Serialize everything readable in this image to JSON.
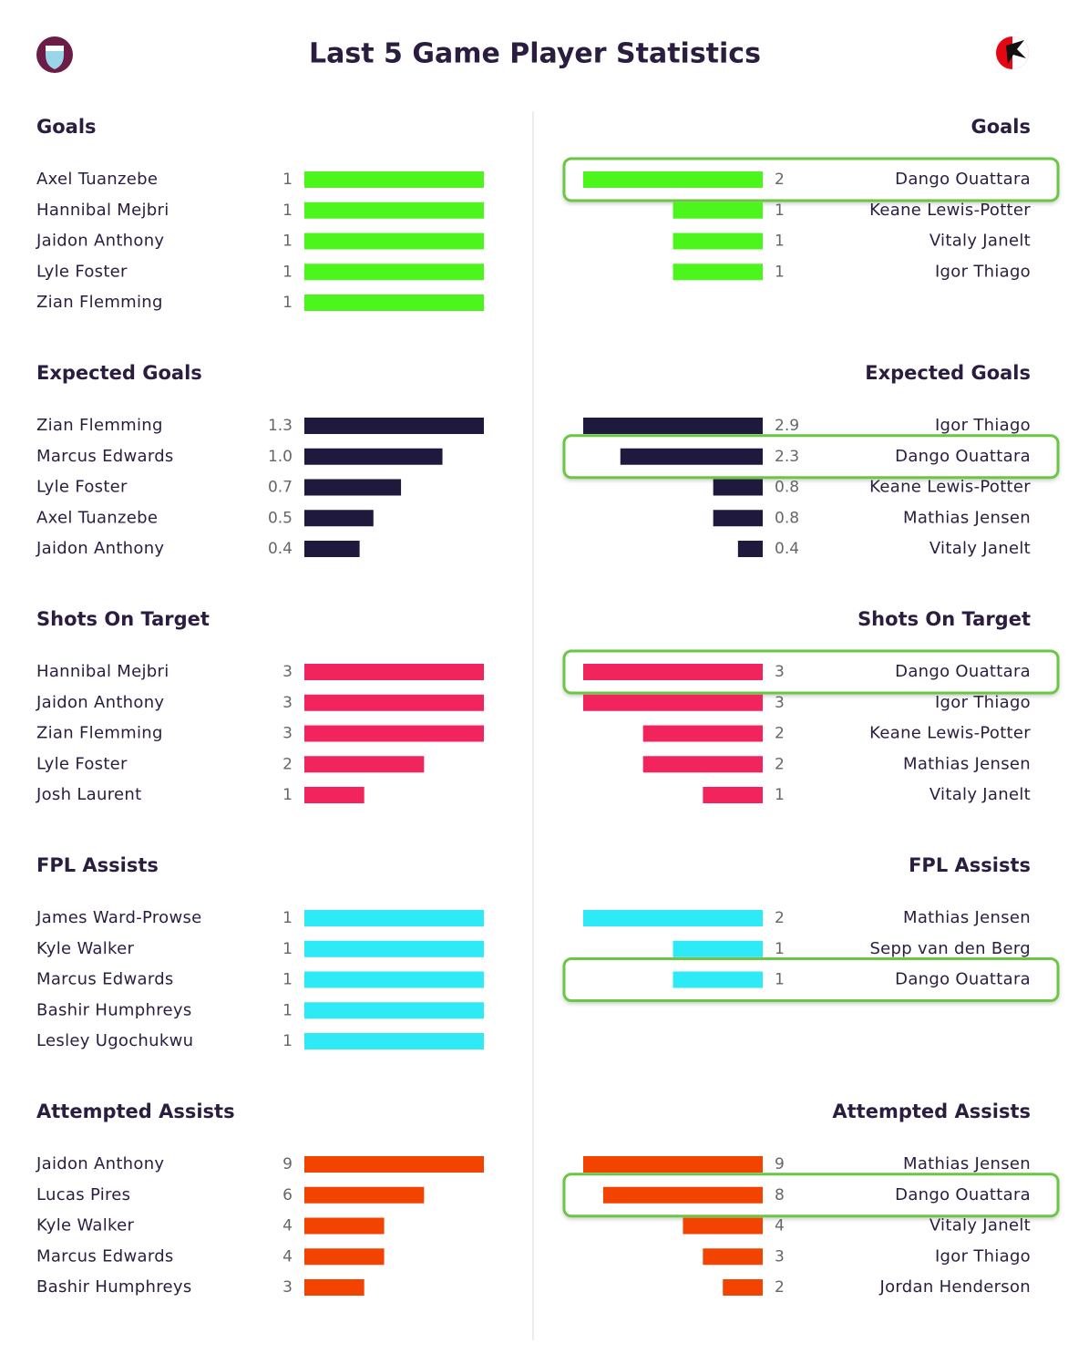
{
  "title": "Last 5 Game Player Statistics",
  "sections": [
    {
      "color": "#4cf51c",
      "left": {
        "heading": "Goals",
        "rows": [
          {
            "name": "Axel Tuanzebe",
            "value": 1
          },
          {
            "name": "Hannibal Mejbri",
            "value": 1
          },
          {
            "name": "Jaidon Anthony",
            "value": 1
          },
          {
            "name": "Lyle Foster",
            "value": 1
          },
          {
            "name": "Zian Flemming",
            "value": 1
          }
        ]
      },
      "right": {
        "heading": "Goals",
        "rows": [
          {
            "name": "Dango Ouattara",
            "value": 2,
            "highlighted": true
          },
          {
            "name": "Keane Lewis-Potter",
            "value": 1
          },
          {
            "name": "Vitaly Janelt",
            "value": 1
          },
          {
            "name": "Igor Thiago",
            "value": 1
          }
        ]
      }
    },
    {
      "color": "#1f1a3d",
      "left": {
        "heading": "Expected Goals",
        "rows": [
          {
            "name": "Zian Flemming",
            "value": 1.3
          },
          {
            "name": "Marcus Edwards",
            "value": 1,
            "value_label": "1.0"
          },
          {
            "name": "Lyle Foster",
            "value": 0.7
          },
          {
            "name": "Axel Tuanzebe",
            "value": 0.5
          },
          {
            "name": "Jaidon Anthony",
            "value": 0.4
          }
        ]
      },
      "right": {
        "heading": "Expected Goals",
        "rows": [
          {
            "name": "Igor Thiago",
            "value": 2.9
          },
          {
            "name": "Dango Ouattara",
            "value": 2.3,
            "highlighted": true
          },
          {
            "name": "Keane Lewis-Potter",
            "value": 0.8
          },
          {
            "name": "Mathias Jensen",
            "value": 0.8
          },
          {
            "name": "Vitaly Janelt",
            "value": 0.4
          }
        ]
      }
    },
    {
      "color": "#f2245e",
      "left": {
        "heading": "Shots On Target",
        "rows": [
          {
            "name": "Hannibal Mejbri",
            "value": 3
          },
          {
            "name": "Jaidon Anthony",
            "value": 3
          },
          {
            "name": "Zian Flemming",
            "value": 3
          },
          {
            "name": "Lyle Foster",
            "value": 2
          },
          {
            "name": "Josh Laurent",
            "value": 1
          }
        ]
      },
      "right": {
        "heading": "Shots On Target",
        "rows": [
          {
            "name": "Dango Ouattara",
            "value": 3,
            "highlighted": true
          },
          {
            "name": "Igor Thiago",
            "value": 3
          },
          {
            "name": "Keane Lewis-Potter",
            "value": 2
          },
          {
            "name": "Mathias Jensen",
            "value": 2
          },
          {
            "name": "Vitaly Janelt",
            "value": 1
          }
        ]
      }
    },
    {
      "color": "#2ee9f6",
      "left": {
        "heading": "FPL Assists",
        "rows": [
          {
            "name": "James Ward-Prowse",
            "value": 1
          },
          {
            "name": "Kyle Walker",
            "value": 1
          },
          {
            "name": "Marcus Edwards",
            "value": 1
          },
          {
            "name": "Bashir Humphreys",
            "value": 1
          },
          {
            "name": "Lesley Ugochukwu",
            "value": 1
          }
        ]
      },
      "right": {
        "heading": "FPL Assists",
        "rows": [
          {
            "name": "Mathias Jensen",
            "value": 2
          },
          {
            "name": "Sepp van den Berg",
            "value": 1
          },
          {
            "name": "Dango Ouattara",
            "value": 1,
            "highlighted": true
          }
        ]
      }
    },
    {
      "color": "#f24400",
      "left": {
        "heading": "Attempted Assists",
        "rows": [
          {
            "name": "Jaidon Anthony",
            "value": 9
          },
          {
            "name": "Lucas Pires",
            "value": 6
          },
          {
            "name": "Kyle Walker",
            "value": 4
          },
          {
            "name": "Marcus Edwards",
            "value": 4
          },
          {
            "name": "Bashir Humphreys",
            "value": 3
          }
        ]
      },
      "right": {
        "heading": "Attempted Assists",
        "rows": [
          {
            "name": "Mathias Jensen",
            "value": 9
          },
          {
            "name": "Dango Ouattara",
            "value": 8,
            "highlighted": true
          },
          {
            "name": "Vitaly Janelt",
            "value": 4
          },
          {
            "name": "Igor Thiago",
            "value": 3
          },
          {
            "name": "Jordan Henderson",
            "value": 2
          }
        ]
      }
    }
  ]
}
